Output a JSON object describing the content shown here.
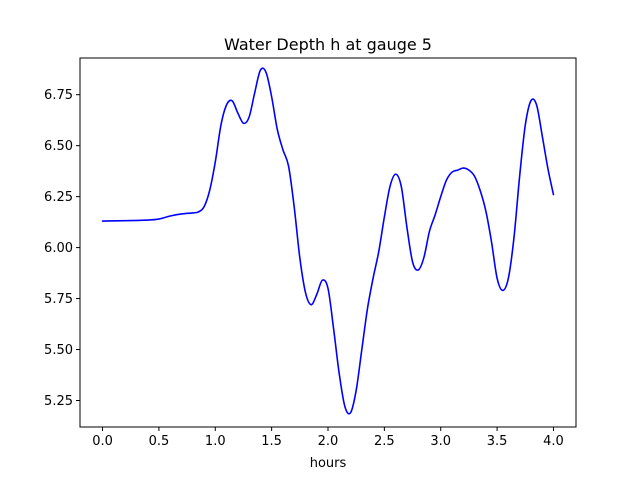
{
  "chart_data": {
    "type": "line",
    "title": "Water Depth h at gauge 5",
    "xlabel": "hours",
    "ylabel": "",
    "xlim": [
      -0.2,
      4.2
    ],
    "ylim": [
      5.12,
      6.93
    ],
    "xticks": [
      0.0,
      0.5,
      1.0,
      1.5,
      2.0,
      2.5,
      3.0,
      3.5,
      4.0
    ],
    "xtick_labels": [
      "0.0",
      "0.5",
      "1.0",
      "1.5",
      "2.0",
      "2.5",
      "3.0",
      "3.5",
      "4.0"
    ],
    "yticks": [
      5.25,
      5.5,
      5.75,
      6.0,
      6.25,
      6.5,
      6.75
    ],
    "ytick_labels": [
      "5.25",
      "5.50",
      "5.75",
      "6.00",
      "6.25",
      "6.50",
      "6.75"
    ],
    "grid": false,
    "series": [
      {
        "color": "#0000ff",
        "x": [
          0.0,
          0.2,
          0.4,
          0.5,
          0.6,
          0.7,
          0.8,
          0.85,
          0.9,
          0.95,
          1.0,
          1.05,
          1.1,
          1.15,
          1.2,
          1.25,
          1.3,
          1.35,
          1.4,
          1.45,
          1.5,
          1.55,
          1.6,
          1.65,
          1.7,
          1.75,
          1.8,
          1.85,
          1.9,
          1.95,
          2.0,
          2.05,
          2.1,
          2.15,
          2.2,
          2.25,
          2.3,
          2.35,
          2.4,
          2.45,
          2.5,
          2.55,
          2.6,
          2.65,
          2.7,
          2.75,
          2.8,
          2.85,
          2.9,
          2.95,
          3.0,
          3.05,
          3.1,
          3.15,
          3.2,
          3.25,
          3.3,
          3.35,
          3.4,
          3.45,
          3.5,
          3.55,
          3.6,
          3.65,
          3.7,
          3.75,
          3.8,
          3.85,
          3.9,
          3.95,
          4.0
        ],
        "y": [
          6.13,
          6.132,
          6.135,
          6.14,
          6.155,
          6.165,
          6.17,
          6.175,
          6.2,
          6.28,
          6.42,
          6.6,
          6.7,
          6.72,
          6.66,
          6.61,
          6.64,
          6.76,
          6.87,
          6.86,
          6.74,
          6.58,
          6.48,
          6.4,
          6.2,
          5.95,
          5.78,
          5.72,
          5.77,
          5.84,
          5.8,
          5.6,
          5.38,
          5.22,
          5.19,
          5.3,
          5.5,
          5.7,
          5.85,
          5.98,
          6.15,
          6.3,
          6.36,
          6.3,
          6.1,
          5.93,
          5.89,
          5.95,
          6.08,
          6.16,
          6.25,
          6.33,
          6.37,
          6.38,
          6.39,
          6.38,
          6.35,
          6.28,
          6.18,
          6.03,
          5.85,
          5.79,
          5.85,
          6.05,
          6.35,
          6.6,
          6.72,
          6.7,
          6.55,
          6.39,
          6.26
        ]
      }
    ]
  }
}
